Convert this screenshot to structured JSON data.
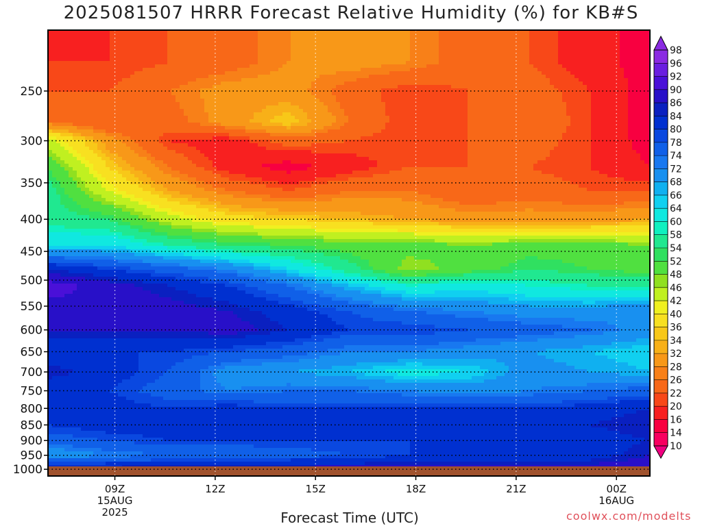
{
  "chart_data": {
    "type": "heatmap",
    "title": "2025081507 HRRR Forecast Relative Humidity (%) for KB#S",
    "xlabel": "Forecast Time (UTC)",
    "ylabel": "",
    "credit": "coolwx.com/modelts",
    "x_ticks": [
      {
        "hour": 9,
        "label": "09Z",
        "sub": [
          "15AUG",
          "2025"
        ]
      },
      {
        "hour": 12,
        "label": "12Z",
        "sub": []
      },
      {
        "hour": 15,
        "label": "15Z",
        "sub": []
      },
      {
        "hour": 18,
        "label": "18Z",
        "sub": []
      },
      {
        "hour": 21,
        "label": "21Z",
        "sub": []
      },
      {
        "hour": 24,
        "label": "00Z",
        "sub": [
          "16AUG"
        ]
      }
    ],
    "xlim_hours": [
      7,
      25
    ],
    "y_ticks": [
      250,
      300,
      350,
      400,
      450,
      500,
      550,
      600,
      650,
      700,
      750,
      800,
      850,
      900,
      950,
      1000
    ],
    "ylim_hPa": [
      200,
      1025
    ],
    "y_scale": "log-pressure",
    "colorbar": {
      "levels": [
        98,
        96,
        92,
        90,
        86,
        84,
        80,
        78,
        74,
        72,
        68,
        66,
        64,
        60,
        58,
        54,
        52,
        48,
        46,
        42,
        40,
        36,
        34,
        32,
        28,
        26,
        22,
        20,
        16,
        14,
        10
      ],
      "colors": [
        "#8a2be2",
        "#6a1fe0",
        "#4a10d8",
        "#2810c8",
        "#0a20c0",
        "#0030d0",
        "#0a48e0",
        "#1060e8",
        "#1878f0",
        "#1890f0",
        "#10b0f0",
        "#10d0f0",
        "#10e8e0",
        "#10f0c0",
        "#20e890",
        "#30e060",
        "#50e040",
        "#90e020",
        "#c0f020",
        "#f0f020",
        "#f8e020",
        "#f8c818",
        "#f8b018",
        "#f89818",
        "#f88018",
        "#f86818",
        "#f84818",
        "#f82020",
        "#f80040",
        "#f80060",
        "#f00080"
      ],
      "placement": "right"
    },
    "profiles": [
      {
        "p": 225,
        "rh": [
          20,
          20,
          22,
          24,
          28,
          30,
          28,
          24,
          22,
          18,
          14
        ]
      },
      {
        "p": 250,
        "rh": [
          22,
          22,
          26,
          30,
          30,
          24,
          20,
          22,
          24,
          20,
          14
        ]
      },
      {
        "p": 280,
        "rh": [
          26,
          22,
          24,
          30,
          36,
          26,
          20,
          22,
          26,
          20,
          14
        ]
      },
      {
        "p": 300,
        "rh": [
          44,
          30,
          20,
          18,
          24,
          22,
          20,
          22,
          24,
          20,
          14
        ]
      },
      {
        "p": 330,
        "rh": [
          52,
          36,
          26,
          18,
          14,
          18,
          22,
          22,
          22,
          20,
          16
        ]
      },
      {
        "p": 360,
        "rh": [
          56,
          42,
          32,
          26,
          22,
          26,
          26,
          22,
          24,
          22,
          22
        ]
      },
      {
        "p": 400,
        "rh": [
          56,
          54,
          44,
          38,
          36,
          34,
          32,
          30,
          30,
          30,
          32
        ]
      },
      {
        "p": 440,
        "rh": [
          64,
          64,
          58,
          54,
          52,
          50,
          50,
          48,
          50,
          50,
          48
        ]
      },
      {
        "p": 480,
        "rh": [
          84,
          80,
          76,
          72,
          64,
          56,
          46,
          50,
          54,
          52,
          50
        ]
      },
      {
        "p": 510,
        "rh": [
          92,
          88,
          84,
          80,
          74,
          66,
          60,
          62,
          60,
          58,
          58
        ]
      },
      {
        "p": 560,
        "rh": [
          88,
          90,
          88,
          86,
          82,
          78,
          74,
          72,
          70,
          70,
          72
        ]
      },
      {
        "p": 600,
        "rh": [
          86,
          86,
          86,
          88,
          84,
          80,
          80,
          78,
          76,
          74,
          70
        ]
      },
      {
        "p": 650,
        "rh": [
          80,
          80,
          80,
          78,
          76,
          72,
          72,
          70,
          68,
          66,
          64
        ]
      },
      {
        "p": 700,
        "rh": [
          86,
          82,
          78,
          70,
          68,
          66,
          62,
          64,
          70,
          68,
          66
        ]
      },
      {
        "p": 750,
        "rh": [
          80,
          80,
          76,
          72,
          74,
          74,
          72,
          70,
          72,
          74,
          76
        ]
      },
      {
        "p": 800,
        "rh": [
          82,
          82,
          80,
          82,
          80,
          80,
          80,
          80,
          80,
          82,
          84
        ]
      },
      {
        "p": 850,
        "rh": [
          80,
          82,
          82,
          82,
          82,
          84,
          84,
          82,
          82,
          84,
          86
        ]
      },
      {
        "p": 900,
        "rh": [
          76,
          78,
          80,
          80,
          80,
          80,
          80,
          80,
          80,
          82,
          84
        ]
      },
      {
        "p": 950,
        "rh": [
          68,
          72,
          74,
          74,
          76,
          78,
          80,
          82,
          80,
          82,
          86
        ]
      },
      {
        "p": 1000,
        "rh": [
          86,
          86,
          88,
          88,
          88,
          88,
          88,
          88,
          88,
          88,
          90
        ]
      }
    ],
    "profile_hours": [
      7,
      8.8,
      10.6,
      12.4,
      14.2,
      16,
      17.8,
      19.6,
      21.4,
      23.2,
      25
    ],
    "ground": {
      "color": "#a0522d"
    },
    "grid": true,
    "legend": "colorbar-right"
  }
}
